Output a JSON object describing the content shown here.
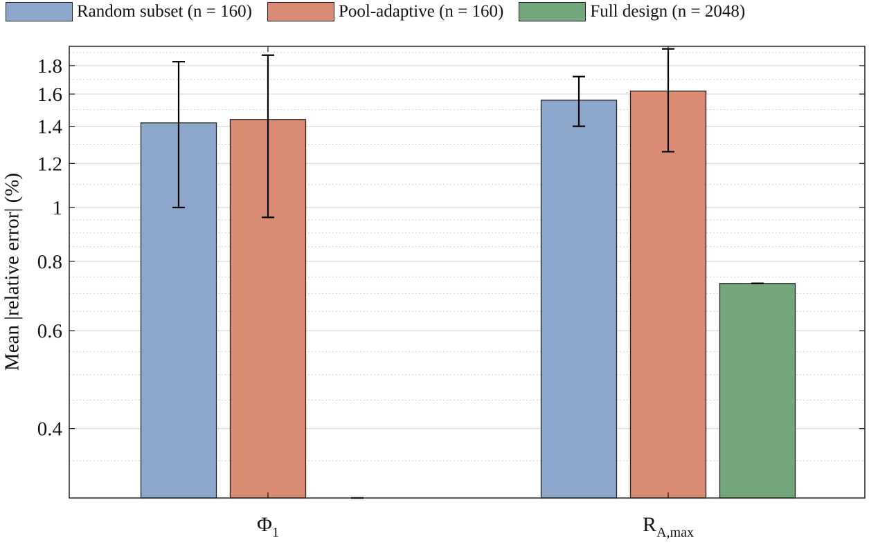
{
  "chart_data": {
    "type": "bar",
    "categories": [
      {
        "main": "Φ",
        "sub": "1"
      },
      {
        "main": "R",
        "sub": "A,max"
      }
    ],
    "ylabel": "Mean |relative error| (%)",
    "yscale": "log",
    "ylim": [
      0.3,
      1.95
    ],
    "yticks": [
      0.4,
      0.6,
      0.8,
      1,
      1.2,
      1.4,
      1.6,
      1.8
    ],
    "ytick_labels": [
      "0.4",
      "0.6",
      "0.8",
      "1",
      "1.2",
      "1.4",
      "1.6",
      "1.8"
    ],
    "grid": true,
    "legend_position": "top",
    "series": [
      {
        "name": "Random subset (n = 160)",
        "color": "#8da7cc",
        "values": [
          1.42,
          1.56
        ],
        "err_low": [
          1.0,
          1.4
        ],
        "err_high": [
          1.83,
          1.72
        ]
      },
      {
        "name": "Pool-adaptive (n = 160)",
        "color": "#d98b74",
        "values": [
          1.44,
          1.62
        ],
        "err_low": [
          0.96,
          1.26
        ],
        "err_high": [
          1.88,
          1.93
        ]
      },
      {
        "name": "Full design (n = 2048)",
        "color": "#74a77e",
        "values": [
          0.3,
          0.73
        ],
        "err_low": [
          0.3,
          0.73
        ],
        "err_high": [
          0.3,
          0.73
        ]
      }
    ]
  }
}
